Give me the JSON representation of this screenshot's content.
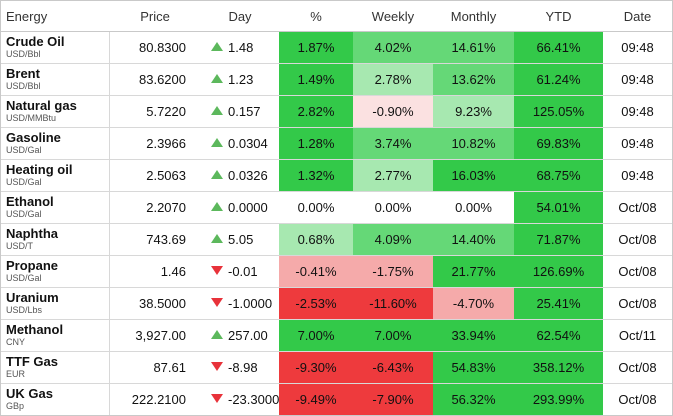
{
  "columns": [
    "Energy",
    "Price",
    "Day",
    "%",
    "Weekly",
    "Monthly",
    "YTD",
    "Date"
  ],
  "colors": {
    "strong_green": "#33c949",
    "mid_green": "#65d877",
    "light_green": "#a7e8b0",
    "white": "#ffffff",
    "pale_red": "#fbe1e1",
    "light_red": "#f5aaaa",
    "strong_red": "#ee3a3d"
  },
  "rows": [
    {
      "name": "Crude Oil",
      "unit": "USD/Bbl",
      "price": "80.8300",
      "dir": "up",
      "day": "1.48",
      "pct": "1.87%",
      "weekly": "4.02%",
      "monthly": "14.61%",
      "ytd": "66.41%",
      "date": "09:48",
      "c_pct": "strong_green",
      "c_weekly": "mid_green",
      "c_monthly": "mid_green",
      "c_ytd": "strong_green"
    },
    {
      "name": "Brent",
      "unit": "USD/Bbl",
      "price": "83.6200",
      "dir": "up",
      "day": "1.23",
      "pct": "1.49%",
      "weekly": "2.78%",
      "monthly": "13.62%",
      "ytd": "61.24%",
      "date": "09:48",
      "c_pct": "strong_green",
      "c_weekly": "light_green",
      "c_monthly": "mid_green",
      "c_ytd": "strong_green"
    },
    {
      "name": "Natural gas",
      "unit": "USD/MMBtu",
      "price": "5.7220",
      "dir": "up",
      "day": "0.157",
      "pct": "2.82%",
      "weekly": "-0.90%",
      "monthly": "9.23%",
      "ytd": "125.05%",
      "date": "09:48",
      "c_pct": "strong_green",
      "c_weekly": "pale_red",
      "c_monthly": "light_green",
      "c_ytd": "strong_green"
    },
    {
      "name": "Gasoline",
      "unit": "USD/Gal",
      "price": "2.3966",
      "dir": "up",
      "day": "0.0304",
      "pct": "1.28%",
      "weekly": "3.74%",
      "monthly": "10.82%",
      "ytd": "69.83%",
      "date": "09:48",
      "c_pct": "strong_green",
      "c_weekly": "mid_green",
      "c_monthly": "mid_green",
      "c_ytd": "strong_green"
    },
    {
      "name": "Heating oil",
      "unit": "USD/Gal",
      "price": "2.5063",
      "dir": "up",
      "day": "0.0326",
      "pct": "1.32%",
      "weekly": "2.77%",
      "monthly": "16.03%",
      "ytd": "68.75%",
      "date": "09:48",
      "c_pct": "strong_green",
      "c_weekly": "light_green",
      "c_monthly": "strong_green",
      "c_ytd": "strong_green"
    },
    {
      "name": "Ethanol",
      "unit": "USD/Gal",
      "price": "2.2070",
      "dir": "up",
      "day": "0.0000",
      "pct": "0.00%",
      "weekly": "0.00%",
      "monthly": "0.00%",
      "ytd": "54.01%",
      "date": "Oct/08",
      "c_pct": "white",
      "c_weekly": "white",
      "c_monthly": "white",
      "c_ytd": "strong_green"
    },
    {
      "name": "Naphtha",
      "unit": "USD/T",
      "price": "743.69",
      "dir": "up",
      "day": "5.05",
      "pct": "0.68%",
      "weekly": "4.09%",
      "monthly": "14.40%",
      "ytd": "71.87%",
      "date": "Oct/08",
      "c_pct": "light_green",
      "c_weekly": "mid_green",
      "c_monthly": "mid_green",
      "c_ytd": "strong_green"
    },
    {
      "name": "Propane",
      "unit": "USD/Gal",
      "price": "1.46",
      "dir": "down",
      "day": "-0.01",
      "pct": "-0.41%",
      "weekly": "-1.75%",
      "monthly": "21.77%",
      "ytd": "126.69%",
      "date": "Oct/08",
      "c_pct": "light_red",
      "c_weekly": "light_red",
      "c_monthly": "strong_green",
      "c_ytd": "strong_green"
    },
    {
      "name": "Uranium",
      "unit": "USD/Lbs",
      "price": "38.5000",
      "dir": "down",
      "day": "-1.0000",
      "pct": "-2.53%",
      "weekly": "-11.60%",
      "monthly": "-4.70%",
      "ytd": "25.41%",
      "date": "Oct/08",
      "c_pct": "strong_red",
      "c_weekly": "strong_red",
      "c_monthly": "light_red",
      "c_ytd": "strong_green"
    },
    {
      "name": "Methanol",
      "unit": "CNY",
      "price": "3,927.00",
      "dir": "up",
      "day": "257.00",
      "pct": "7.00%",
      "weekly": "7.00%",
      "monthly": "33.94%",
      "ytd": "62.54%",
      "date": "Oct/11",
      "c_pct": "strong_green",
      "c_weekly": "strong_green",
      "c_monthly": "strong_green",
      "c_ytd": "strong_green"
    },
    {
      "name": "TTF Gas",
      "unit": "EUR",
      "price": "87.61",
      "dir": "down",
      "day": "-8.98",
      "pct": "-9.30%",
      "weekly": "-6.43%",
      "monthly": "54.83%",
      "ytd": "358.12%",
      "date": "Oct/08",
      "c_pct": "strong_red",
      "c_weekly": "strong_red",
      "c_monthly": "strong_green",
      "c_ytd": "strong_green"
    },
    {
      "name": "UK Gas",
      "unit": "GBp",
      "price": "222.2100",
      "dir": "down",
      "day": "-23.3000",
      "pct": "-9.49%",
      "weekly": "-7.90%",
      "monthly": "56.32%",
      "ytd": "293.99%",
      "date": "Oct/08",
      "c_pct": "strong_red",
      "c_weekly": "strong_red",
      "c_monthly": "strong_green",
      "c_ytd": "strong_green"
    }
  ]
}
